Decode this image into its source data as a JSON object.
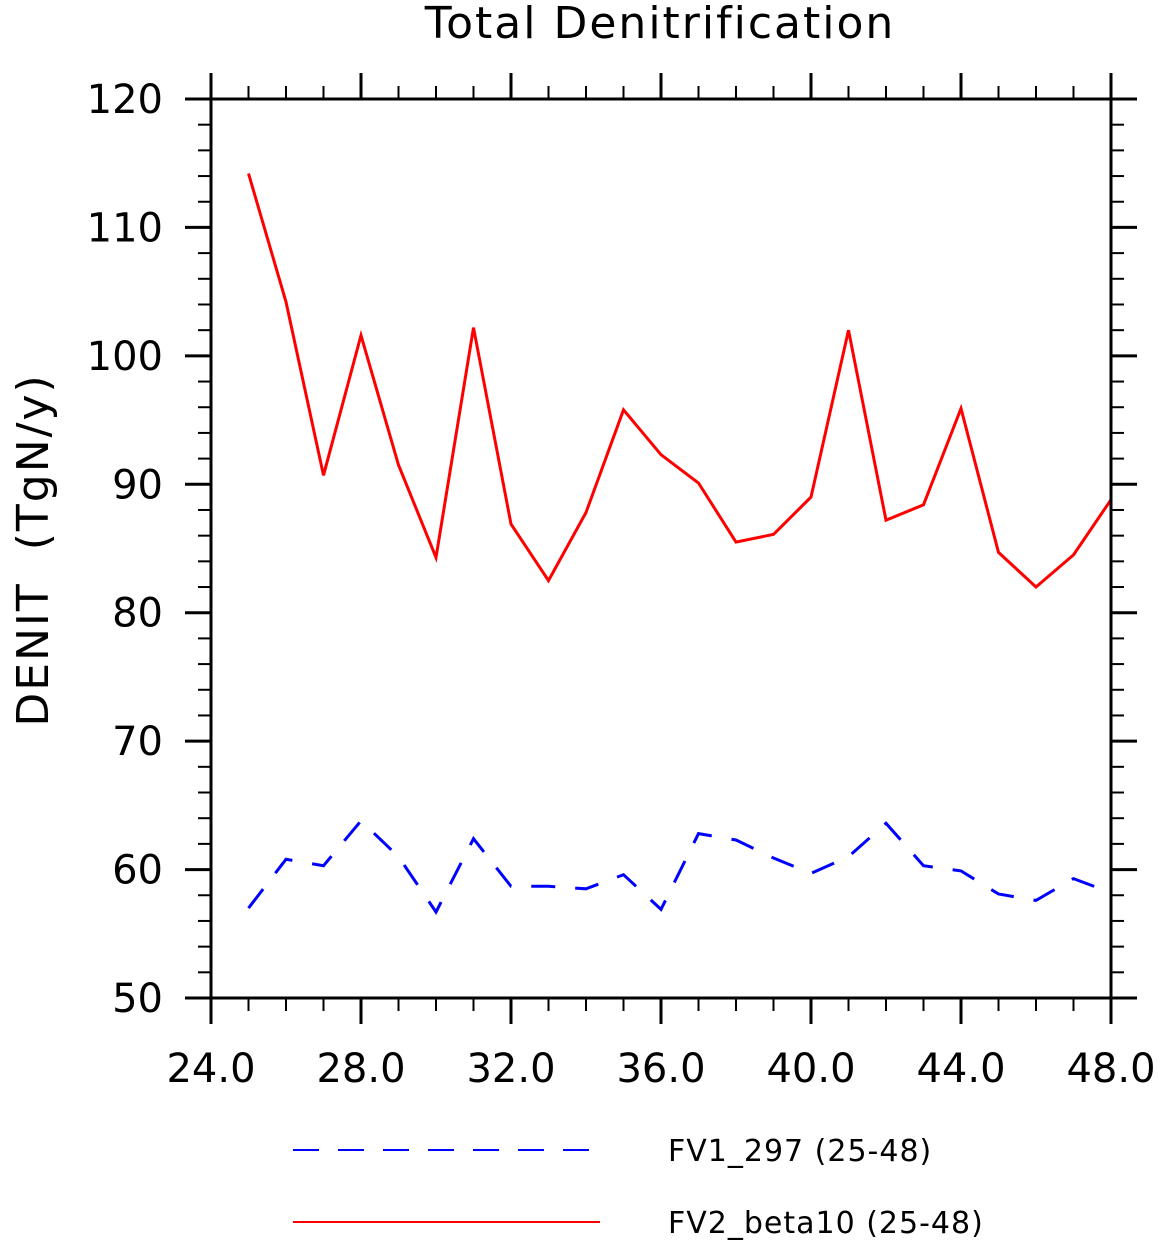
{
  "chart_data": {
    "type": "line",
    "title": "Total Denitrification",
    "ylabel": "DENIT  (TgN/y)",
    "xlabel": "",
    "xlim": [
      24,
      48
    ],
    "ylim": [
      50,
      120
    ],
    "x_ticks": [
      "24.0",
      "28.0",
      "32.0",
      "36.0",
      "40.0",
      "44.0",
      "48.0"
    ],
    "y_ticks": [
      "50",
      "60",
      "70",
      "80",
      "90",
      "100",
      "110",
      "120"
    ],
    "grid": false,
    "legend_position": "bottom",
    "x": [
      25,
      26,
      27,
      28,
      29,
      30,
      31,
      32,
      33,
      34,
      35,
      36,
      37,
      38,
      39,
      40,
      41,
      42,
      43,
      44,
      45,
      46,
      47,
      48
    ],
    "series": [
      {
        "name": "FV1_297 (25-48)",
        "color": "#0000ff",
        "dash": "dashed",
        "values": [
          57.0,
          60.8,
          60.3,
          63.8,
          61.0,
          56.7,
          62.4,
          58.7,
          58.7,
          58.5,
          59.6,
          56.9,
          62.8,
          62.3,
          60.9,
          59.7,
          61.0,
          63.6,
          60.3,
          59.9,
          58.1,
          57.6,
          59.3,
          58.2
        ]
      },
      {
        "name": "FV2_beta10 (25-48)",
        "color": "#ff0000",
        "dash": "solid",
        "values": [
          114.2,
          104.2,
          90.7,
          101.6,
          91.5,
          84.3,
          102.2,
          86.9,
          82.5,
          87.8,
          95.8,
          92.3,
          90.1,
          85.5,
          86.1,
          89.0,
          102.0,
          87.2,
          88.4,
          95.9,
          84.7,
          82.0,
          84.5,
          88.8
        ]
      }
    ]
  }
}
